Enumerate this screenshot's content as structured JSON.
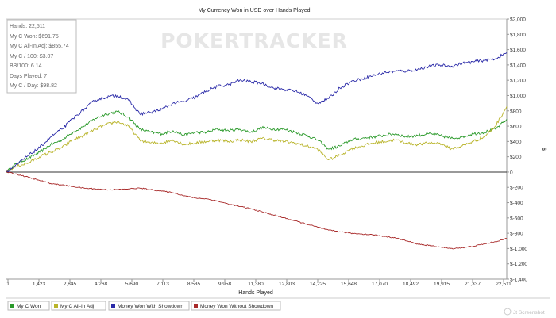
{
  "chart_data": {
    "type": "line",
    "title": "My Currency Won in USD over Hands Played",
    "xlabel": "Hands Played",
    "ylabel": "$",
    "x_ticks": [
      "1",
      "1,423",
      "2,845",
      "4,268",
      "5,690",
      "7,113",
      "8,535",
      "9,958",
      "11,380",
      "12,803",
      "14,225",
      "15,648",
      "17,070",
      "18,492",
      "19,915",
      "21,337",
      "22,511"
    ],
    "y_ticks": [
      "$2,000",
      "$1,800",
      "$1,600",
      "$1,400",
      "$1,200",
      "$1,000",
      "$800",
      "$600",
      "$400",
      "$200",
      "0",
      "$-200",
      "$-400",
      "$-600",
      "$-800",
      "$-1,000",
      "$-1,200",
      "$-1,400"
    ],
    "xlim": [
      1,
      22511
    ],
    "ylim": [
      -1400,
      2000
    ],
    "series": [
      {
        "name": "My C Won",
        "color": "#2b9a2b",
        "x": [
          1,
          500,
          1000,
          1500,
          2000,
          2500,
          3000,
          3500,
          4000,
          4500,
          5000,
          5500,
          6000,
          6500,
          7000,
          7500,
          8000,
          8500,
          9000,
          9500,
          10000,
          10500,
          11000,
          11500,
          12000,
          12500,
          13000,
          13500,
          14000,
          14500,
          15000,
          15500,
          16000,
          16500,
          17000,
          17500,
          18000,
          18500,
          19000,
          19500,
          20000,
          20500,
          21000,
          21500,
          22000,
          22511
        ],
        "values": [
          0,
          120,
          180,
          260,
          360,
          420,
          520,
          600,
          700,
          760,
          790,
          720,
          560,
          520,
          500,
          540,
          480,
          520,
          520,
          560,
          540,
          560,
          520,
          580,
          560,
          560,
          520,
          480,
          420,
          300,
          340,
          420,
          440,
          460,
          480,
          500,
          460,
          480,
          500,
          480,
          440,
          460,
          500,
          520,
          560,
          690
        ]
      },
      {
        "name": "My C All-In Adj",
        "color": "#b9b42a",
        "x": [
          1,
          500,
          1000,
          1500,
          2000,
          2500,
          3000,
          3500,
          4000,
          4500,
          5000,
          5500,
          6000,
          6500,
          7000,
          7500,
          8000,
          8500,
          9000,
          9500,
          10000,
          10500,
          11000,
          11500,
          12000,
          12500,
          13000,
          13500,
          14000,
          14500,
          15000,
          15500,
          16000,
          16500,
          17000,
          17500,
          18000,
          18500,
          19000,
          19500,
          20000,
          20500,
          21000,
          21500,
          22000,
          22511
        ],
        "values": [
          0,
          80,
          120,
          200,
          260,
          320,
          420,
          480,
          560,
          620,
          660,
          600,
          420,
          380,
          380,
          420,
          360,
          380,
          400,
          420,
          400,
          420,
          400,
          440,
          420,
          400,
          380,
          340,
          300,
          160,
          220,
          300,
          340,
          380,
          400,
          420,
          380,
          360,
          380,
          380,
          300,
          340,
          400,
          460,
          600,
          856
        ]
      },
      {
        "name": "Money Won With Showdown",
        "color": "#2a2aa8",
        "x": [
          1,
          500,
          1000,
          1500,
          2000,
          2500,
          3000,
          3500,
          4000,
          4500,
          5000,
          5500,
          6000,
          6500,
          7000,
          7500,
          8000,
          8500,
          9000,
          9500,
          10000,
          10500,
          11000,
          11500,
          12000,
          12500,
          13000,
          13500,
          14000,
          14500,
          15000,
          15500,
          16000,
          16500,
          17000,
          17500,
          18000,
          18500,
          19000,
          19500,
          20000,
          20500,
          21000,
          21500,
          22000,
          22511
        ],
        "values": [
          0,
          100,
          220,
          320,
          460,
          560,
          700,
          820,
          940,
          980,
          1000,
          940,
          760,
          780,
          820,
          900,
          920,
          980,
          1060,
          1120,
          1140,
          1200,
          1180,
          1160,
          1100,
          1080,
          1060,
          1000,
          900,
          960,
          1100,
          1180,
          1220,
          1260,
          1300,
          1320,
          1320,
          1340,
          1380,
          1400,
          1380,
          1420,
          1440,
          1460,
          1480,
          1560
        ]
      },
      {
        "name": "Money Won Without Showdown",
        "color": "#a82a2a",
        "x": [
          1,
          500,
          1000,
          1500,
          2000,
          2500,
          3000,
          3500,
          4000,
          4500,
          5000,
          5500,
          6000,
          6500,
          7000,
          7500,
          8000,
          8500,
          9000,
          9500,
          10000,
          10500,
          11000,
          11500,
          12000,
          12500,
          13000,
          13500,
          14000,
          14500,
          15000,
          15500,
          16000,
          16500,
          17000,
          17500,
          18000,
          18500,
          19000,
          19500,
          20000,
          20500,
          21000,
          21500,
          22000,
          22511
        ],
        "values": [
          0,
          -30,
          -70,
          -110,
          -150,
          -170,
          -190,
          -210,
          -220,
          -230,
          -230,
          -220,
          -210,
          -230,
          -250,
          -270,
          -310,
          -340,
          -350,
          -380,
          -420,
          -450,
          -480,
          -520,
          -560,
          -600,
          -640,
          -680,
          -720,
          -760,
          -780,
          -800,
          -810,
          -820,
          -840,
          -860,
          -900,
          -940,
          -960,
          -980,
          -1000,
          -990,
          -970,
          -940,
          -910,
          -870
        ]
      }
    ]
  },
  "stats": [
    "Hands: 22,511",
    "My C Won: $691.75",
    "My C All-In Adj: $855.74",
    "My C / 100: $3.07",
    "BB/100: 6.14",
    "Days Played: 7",
    "My C / Day: $98.82"
  ],
  "logo": "POKERTRACKER",
  "watermark": "Jt Screenshot"
}
